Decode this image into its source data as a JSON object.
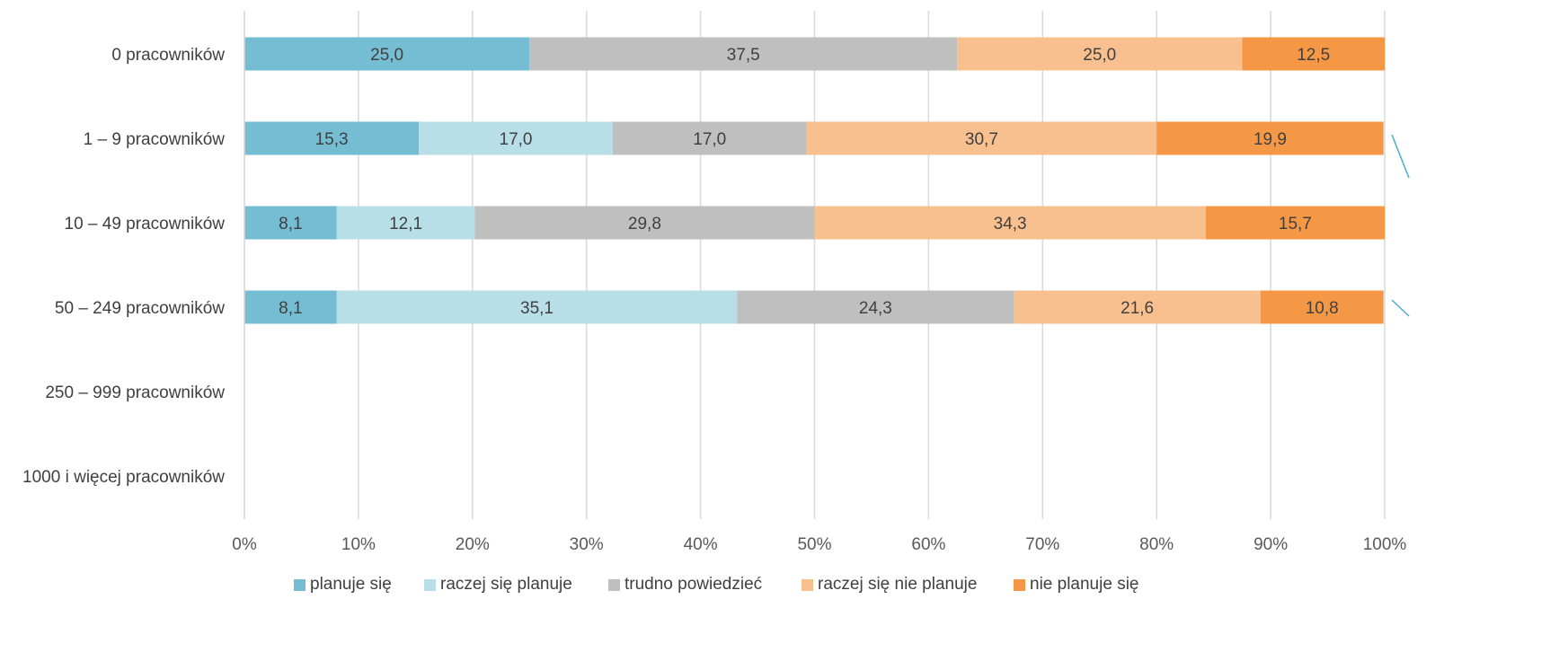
{
  "chart_data": {
    "type": "bar",
    "orientation": "horizontal",
    "stacked": "percent",
    "categories": [
      "0 pracowników",
      "1 – 9 pracowników",
      "10 – 49 pracowników",
      "50 – 249 pracowników",
      "250 – 999 pracowników",
      "1000 i więcej pracowników"
    ],
    "series": [
      {
        "name": "planuje się",
        "color": "#75BDD3",
        "values": [
          25.0,
          15.3,
          8.1,
          8.1,
          null,
          null
        ],
        "labels": [
          "25,0",
          "15,3",
          "8,1",
          "8,1",
          "",
          ""
        ]
      },
      {
        "name": "raczej się planuje",
        "color": "#B8DEE8",
        "values": [
          0,
          17.0,
          12.1,
          35.1,
          null,
          null
        ],
        "labels": [
          "",
          "17,0",
          "12,1",
          "35,1",
          "",
          ""
        ]
      },
      {
        "name": "trudno powiedzieć",
        "color": "#BFBFBF",
        "values": [
          37.5,
          17.0,
          29.8,
          24.3,
          null,
          null
        ],
        "labels": [
          "37,5",
          "17,0",
          "29,8",
          "24,3",
          "",
          ""
        ]
      },
      {
        "name": "raczej się nie planuje",
        "color": "#F9C08F",
        "values": [
          25.0,
          30.7,
          34.3,
          21.6,
          null,
          null
        ],
        "labels": [
          "25,0",
          "30,7",
          "34,3",
          "21,6",
          "",
          ""
        ]
      },
      {
        "name": "nie planuje się",
        "color": "#F59846",
        "values": [
          12.5,
          19.9,
          15.7,
          10.8,
          null,
          null
        ],
        "labels": [
          "12,5",
          "19,9",
          "15,7",
          "10,8",
          "",
          ""
        ]
      }
    ],
    "xlim": [
      0,
      100
    ],
    "x_ticks": [
      "0%",
      "10%",
      "20%",
      "30%",
      "40%",
      "50%",
      "60%",
      "70%",
      "80%",
      "90%",
      "100%"
    ],
    "grid": "vertical",
    "legend_position": "bottom",
    "title": "",
    "xlabel": "",
    "ylabel": ""
  }
}
